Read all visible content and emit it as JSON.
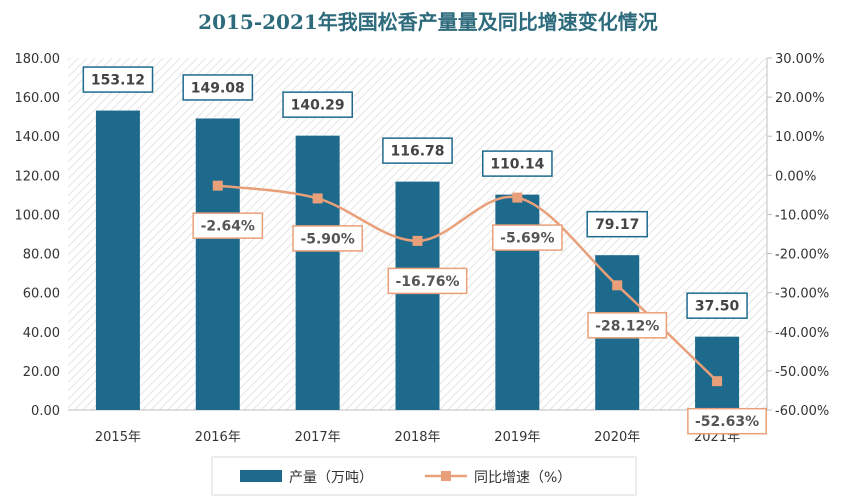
{
  "chart_data": {
    "type": "bar",
    "title": "2015-2021年我国松香产量量及同比增速变化情况",
    "categories": [
      "2015年",
      "2016年",
      "2017年",
      "2018年",
      "2019年",
      "2020年",
      "2021年"
    ],
    "series": [
      {
        "name": "产量（万吨）",
        "type": "bar",
        "axis": "left",
        "values": [
          153.12,
          149.08,
          140.29,
          116.78,
          110.14,
          79.17,
          37.5
        ],
        "labels": [
          "153.12",
          "149.08",
          "140.29",
          "116.78",
          "110.14",
          "79.17",
          "37.50"
        ],
        "color": "#1e6a8d"
      },
      {
        "name": "同比增速（%）",
        "type": "line",
        "axis": "right",
        "values": [
          null,
          -2.64,
          -5.9,
          -16.76,
          -5.69,
          -28.12,
          -52.63
        ],
        "labels": [
          "",
          "-2.64%",
          "-5.90%",
          "-16.76%",
          "-5.69%",
          "-28.12%",
          "-52.63%"
        ],
        "color": "#e9a07a"
      }
    ],
    "left_axis": {
      "min": 0,
      "max": 180,
      "step": 20,
      "tick_labels": [
        "0.00",
        "20.00",
        "40.00",
        "60.00",
        "80.00",
        "100.00",
        "120.00",
        "140.00",
        "160.00",
        "180.00"
      ]
    },
    "right_axis": {
      "min": -60,
      "max": 30,
      "step": 10,
      "tick_labels": [
        "-60.00%",
        "-50.00%",
        "-40.00%",
        "-30.00%",
        "-20.00%",
        "-10.00%",
        "0.00%",
        "10.00%",
        "20.00%",
        "30.00%"
      ]
    },
    "legend_position": "bottom",
    "background": "diagonal-hatch",
    "label_border_color": "#1e6a8d",
    "pct_label_border_color": "#e9a07a"
  }
}
